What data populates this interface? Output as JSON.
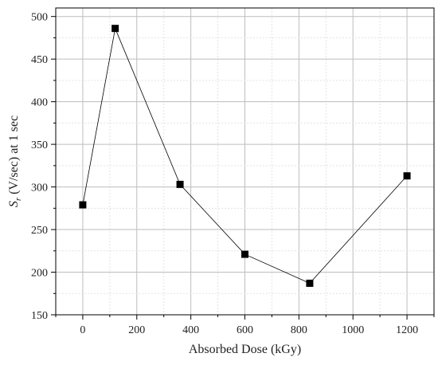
{
  "chart_data": {
    "type": "line",
    "title": "",
    "xlabel": "Absorbed Dose (kGy)",
    "ylabel_symbol": "S",
    "ylabel_subscript": "r",
    "ylabel_rest": " (V/sec) at 1 sec",
    "xlim": [
      -100,
      1300
    ],
    "ylim": [
      150,
      510
    ],
    "xticks": [
      0,
      200,
      400,
      600,
      800,
      1000,
      1200
    ],
    "yticks": [
      150,
      200,
      250,
      300,
      350,
      400,
      450,
      500
    ],
    "grid": true,
    "legend": "none",
    "series": [
      {
        "x": [
          0,
          120,
          360,
          600,
          840,
          1200
        ],
        "y": [
          279,
          486,
          303,
          221,
          187,
          313
        ],
        "marker": "square",
        "color": "#000000"
      }
    ]
  }
}
